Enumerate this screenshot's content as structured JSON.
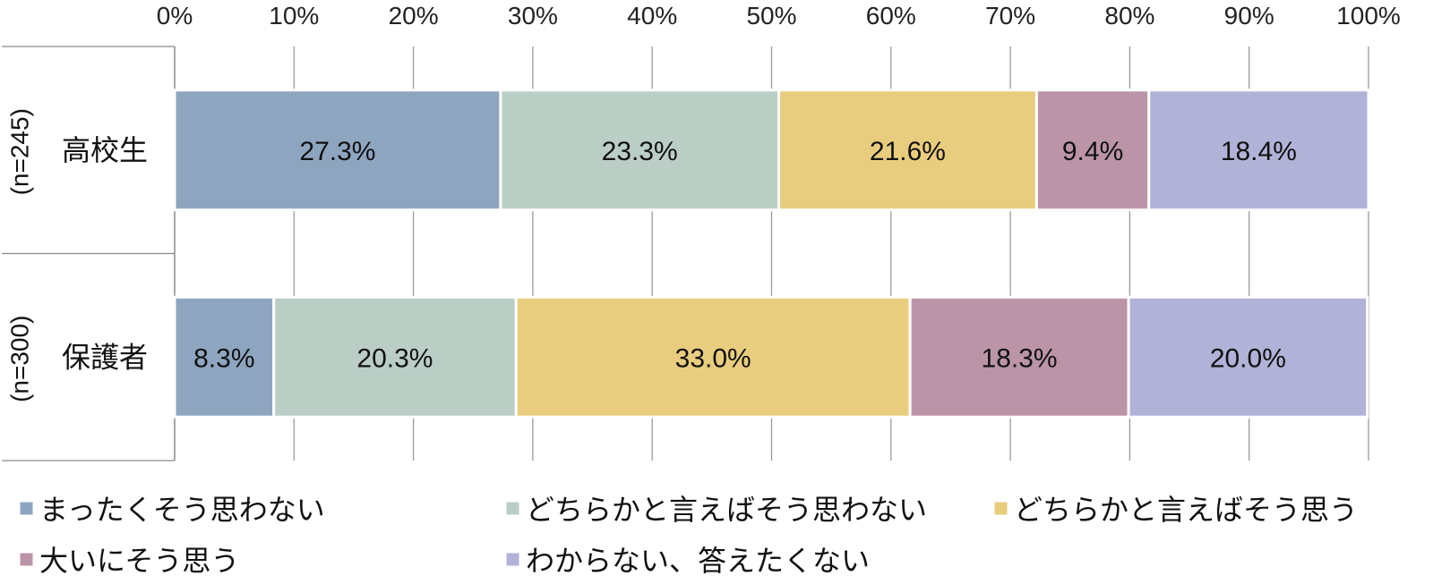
{
  "chart_data": {
    "type": "bar",
    "orientation": "horizontal",
    "stacked": true,
    "xlim": [
      0,
      100
    ],
    "x_ticks": [
      "0%",
      "10%",
      "20%",
      "30%",
      "40%",
      "50%",
      "60%",
      "70%",
      "80%",
      "90%",
      "100%"
    ],
    "x_axis_position": "top",
    "grid": true,
    "categories": [
      {
        "label": "高校生",
        "n": "(n=245)"
      },
      {
        "label": "保護者",
        "n": "(n=300)"
      }
    ],
    "series": [
      {
        "name": "まったくそう思わない",
        "color": "#8ea5c0",
        "values": [
          27.3,
          8.3
        ],
        "labels": [
          "27.3%",
          "8.3%"
        ]
      },
      {
        "name": "どちらかと言えばそう思わない",
        "color": "#bacec6",
        "values": [
          23.3,
          20.3
        ],
        "labels": [
          "23.3%",
          "20.3%"
        ]
      },
      {
        "name": "どちらかと言えばそう思う",
        "color": "#e9cd7e",
        "values": [
          21.6,
          33.0
        ],
        "labels": [
          "21.6%",
          "33.0%"
        ]
      },
      {
        "name": "大いにそう思う",
        "color": "#bb94a8",
        "values": [
          9.4,
          18.3
        ],
        "labels": [
          "9.4%",
          "18.3%"
        ]
      },
      {
        "name": "わからない、答えたくない",
        "color": "#b1b2d7",
        "values": [
          18.4,
          20.0
        ],
        "labels": [
          "18.4%",
          "20.0%"
        ]
      }
    ],
    "legend_position": "bottom"
  }
}
